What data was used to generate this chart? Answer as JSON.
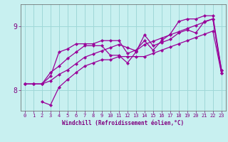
{
  "xlabel": "Windchill (Refroidissement éolien,°C)",
  "bg_color": "#c8f0f0",
  "grid_color": "#9fd8d8",
  "line_color": "#990099",
  "xlim": [
    -0.5,
    23.5
  ],
  "ylim": [
    7.68,
    9.35
  ],
  "xticks": [
    0,
    1,
    2,
    3,
    4,
    5,
    6,
    7,
    8,
    9,
    10,
    11,
    12,
    13,
    14,
    15,
    16,
    17,
    18,
    19,
    20,
    21,
    22,
    23
  ],
  "yticks": [
    8,
    9
  ],
  "series": [
    {
      "x": [
        0,
        1,
        2,
        3,
        4,
        5,
        6,
        7,
        8,
        9,
        10,
        11,
        12,
        13,
        14,
        15,
        16,
        17,
        18,
        19,
        20,
        21,
        22,
        23
      ],
      "y": [
        8.1,
        8.1,
        8.1,
        8.15,
        8.25,
        8.32,
        8.42,
        8.52,
        8.57,
        8.62,
        8.67,
        8.72,
        8.67,
        8.62,
        8.72,
        8.77,
        8.82,
        8.87,
        8.92,
        8.97,
        9.02,
        9.07,
        9.12,
        8.27
      ]
    },
    {
      "x": [
        0,
        1,
        2,
        3,
        4,
        5,
        6,
        7,
        8,
        9,
        10,
        11,
        12,
        13,
        14,
        15,
        16,
        17,
        18,
        19,
        20,
        21,
        22,
        23
      ],
      "y": [
        8.1,
        8.1,
        8.1,
        8.22,
        8.6,
        8.65,
        8.73,
        8.73,
        8.73,
        8.78,
        8.78,
        8.78,
        8.58,
        8.63,
        8.78,
        8.63,
        8.78,
        8.88,
        9.08,
        9.12,
        9.12,
        9.17,
        9.17,
        8.32
      ]
    },
    {
      "x": [
        0,
        1,
        2,
        3,
        4,
        5,
        6,
        7,
        8,
        9,
        10,
        11,
        12,
        13,
        14,
        15,
        16,
        17,
        18,
        19,
        20,
        21,
        22,
        23
      ],
      "y": [
        8.1,
        8.1,
        8.1,
        8.28,
        8.38,
        8.5,
        8.6,
        8.7,
        8.7,
        8.7,
        8.55,
        8.55,
        8.43,
        8.6,
        8.87,
        8.7,
        8.75,
        8.8,
        8.9,
        8.95,
        8.9,
        9.08,
        9.12,
        8.32
      ]
    },
    {
      "x": [
        2,
        3,
        4,
        5,
        6,
        7,
        8,
        9,
        10,
        11,
        12,
        13,
        14,
        15,
        16,
        17,
        18,
        19,
        20,
        21,
        22,
        23
      ],
      "y": [
        7.82,
        7.77,
        8.05,
        8.17,
        8.28,
        8.38,
        8.43,
        8.48,
        8.48,
        8.53,
        8.53,
        8.53,
        8.53,
        8.58,
        8.63,
        8.68,
        8.73,
        8.78,
        8.83,
        8.88,
        8.93,
        8.27
      ]
    }
  ]
}
